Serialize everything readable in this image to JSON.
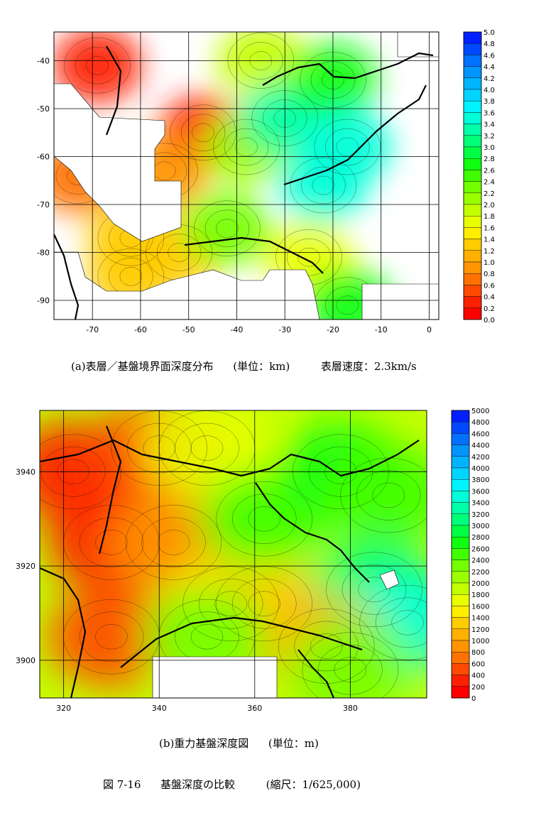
{
  "chart_data": [
    {
      "type": "heatmap",
      "title": "",
      "xlabel": "",
      "ylabel": "",
      "xlim": [
        -78,
        2
      ],
      "ylim": [
        -94,
        -34
      ],
      "x_ticks": [
        "-70",
        "-60",
        "-50",
        "-40",
        "-30",
        "-20",
        "-10",
        "0"
      ],
      "x_tick_values": [
        -70,
        -60,
        -50,
        -40,
        -30,
        -20,
        -10,
        0
      ],
      "y_ticks": [
        "-40",
        "-50",
        "-60",
        "-70",
        "-80",
        "-90"
      ],
      "y_tick_values": [
        -40,
        -50,
        -60,
        -70,
        -80,
        -90
      ],
      "grid": true,
      "colorbar": {
        "min": 0.0,
        "max": 5.0,
        "labels": [
          "5.0",
          "4.8",
          "4.6",
          "4.4",
          "4.2",
          "4.0",
          "3.8",
          "3.6",
          "3.4",
          "3.2",
          "3.0",
          "2.8",
          "2.6",
          "2.4",
          "2.2",
          "2.0",
          "1.8",
          "1.6",
          "1.4",
          "1.2",
          "1.0",
          "0.8",
          "0.6",
          "0.4",
          "0.2",
          "0.0"
        ]
      },
      "regions": [
        {
          "x": -69,
          "y": -41,
          "value": 0.3
        },
        {
          "x": -47,
          "y": -55,
          "value": 0.2
        },
        {
          "x": -73,
          "y": -64,
          "value": 0.6
        },
        {
          "x": -55,
          "y": -63,
          "value": 0.8
        },
        {
          "x": -62,
          "y": -77,
          "value": 1.2
        },
        {
          "x": -52,
          "y": -80,
          "value": 1.2
        },
        {
          "x": -62,
          "y": -85,
          "value": 1.4
        },
        {
          "x": -35,
          "y": -40,
          "value": 1.8
        },
        {
          "x": -38,
          "y": -58,
          "value": 2.0
        },
        {
          "x": -42,
          "y": -75,
          "value": 2.2
        },
        {
          "x": -30,
          "y": -52,
          "value": 3.2
        },
        {
          "x": -20,
          "y": -44,
          "value": 2.6
        },
        {
          "x": -17,
          "y": -58,
          "value": 3.4
        },
        {
          "x": -22,
          "y": -66,
          "value": 3.4
        },
        {
          "x": -25,
          "y": -81,
          "value": 1.6
        },
        {
          "x": -17,
          "y": -91,
          "value": 2.6
        }
      ]
    },
    {
      "type": "heatmap",
      "title": "",
      "xlabel": "",
      "ylabel": "",
      "xlim": [
        315,
        396
      ],
      "ylim": [
        3892,
        3953
      ],
      "x_ticks": [
        "320",
        "340",
        "360",
        "380"
      ],
      "x_tick_values": [
        320,
        340,
        360,
        380
      ],
      "y_ticks": [
        "3940",
        "3920",
        "3900"
      ],
      "y_tick_values": [
        3940,
        3920,
        3900
      ],
      "grid": true,
      "colorbar": {
        "min": 0,
        "max": 5000,
        "labels": [
          "5000",
          "4800",
          "4600",
          "4400",
          "4200",
          "4000",
          "3800",
          "3600",
          "3400",
          "3200",
          "3000",
          "2800",
          "2600",
          "2400",
          "2200",
          "2000",
          "1800",
          "1600",
          "1400",
          "1200",
          "1000",
          "800",
          "600",
          "400",
          "200",
          "0"
        ]
      },
      "regions": [
        {
          "x": 330,
          "y": 3925,
          "value": 200
        },
        {
          "x": 322,
          "y": 3940,
          "value": 300
        },
        {
          "x": 340,
          "y": 3945,
          "value": 400
        },
        {
          "x": 330,
          "y": 3905,
          "value": 500
        },
        {
          "x": 343,
          "y": 3925,
          "value": 900
        },
        {
          "x": 350,
          "y": 3945,
          "value": 1600
        },
        {
          "x": 355,
          "y": 3912,
          "value": 1500
        },
        {
          "x": 362,
          "y": 3912,
          "value": 1300
        },
        {
          "x": 350,
          "y": 3905,
          "value": 2200
        },
        {
          "x": 362,
          "y": 3930,
          "value": 2400
        },
        {
          "x": 378,
          "y": 3940,
          "value": 2600
        },
        {
          "x": 388,
          "y": 3935,
          "value": 2400
        },
        {
          "x": 385,
          "y": 3915,
          "value": 3000
        },
        {
          "x": 392,
          "y": 3908,
          "value": 3400
        },
        {
          "x": 375,
          "y": 3903,
          "value": 1000
        },
        {
          "x": 380,
          "y": 3898,
          "value": 2200
        }
      ]
    }
  ],
  "captions": {
    "a": {
      "main": "(a)表層／基盤境界面深度分布",
      "unit": "(単位：km)",
      "speed": "表層速度：2.3km/s"
    },
    "b": {
      "main": "(b)重力基盤深度図",
      "unit": "(単位：m)"
    },
    "figure": {
      "label": "図 7-16",
      "title": "基盤深度の比較",
      "scale": "(縮尺：1/625,000)"
    }
  },
  "colors": {
    "scale": [
      "#ff0000",
      "#ff2000",
      "#ff4a00",
      "#ff7200",
      "#ff9400",
      "#ffb000",
      "#ffcc00",
      "#ffee00",
      "#e8ff00",
      "#c4ff00",
      "#9cff00",
      "#74ff00",
      "#40ff00",
      "#10ff10",
      "#00ff44",
      "#00ff78",
      "#00ffa8",
      "#00ffd8",
      "#00f4ff",
      "#00d4ff",
      "#00b4ff",
      "#0094ff",
      "#0070ff",
      "#0048ff",
      "#0020ff"
    ]
  }
}
